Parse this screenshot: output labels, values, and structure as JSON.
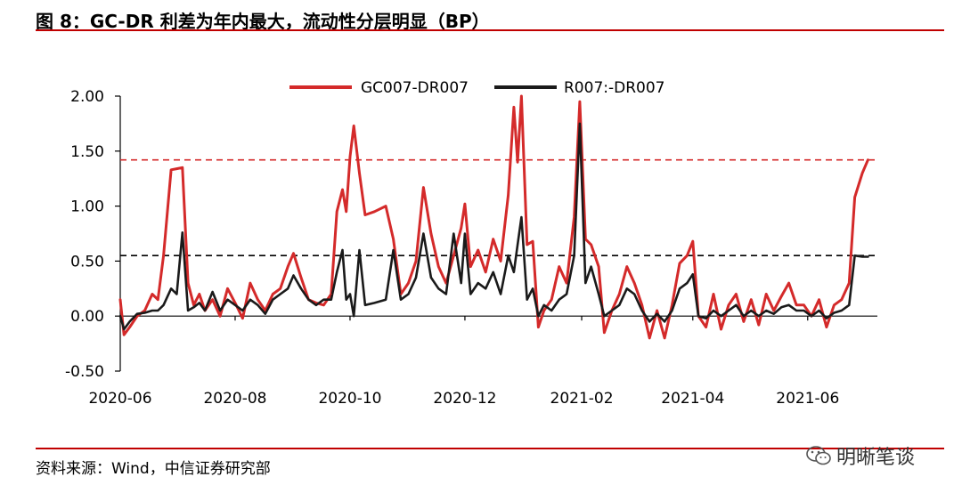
{
  "header": {
    "title": "图 8：GC-DR 利差为年内最大，流动性分层明显（BP）"
  },
  "footer": {
    "source": "资料来源：Wind，中信证券研究部",
    "watermark": "明晰笔谈"
  },
  "colors": {
    "accent": "#c00000",
    "series_gc": "#d42a2a",
    "series_r": "#1a1a1a"
  },
  "chart_data": {
    "type": "line",
    "title": "",
    "xlabel": "",
    "ylabel": "",
    "ylim": [
      -0.5,
      2.0
    ],
    "yticks": [
      "2.00",
      "1.50",
      "1.00",
      "0.50",
      "0.00",
      "-0.50"
    ],
    "xticks": [
      "2020-06",
      "2020-08",
      "2020-10",
      "2020-12",
      "2021-02",
      "2021-04",
      "2021-06"
    ],
    "xlim": [
      "2020-06-01",
      "2021-07-08"
    ],
    "legend_position": "top",
    "reference_lines": [
      {
        "value": 1.42,
        "style": "dashed",
        "color": "#d42a2a"
      },
      {
        "value": 0.55,
        "style": "dashed",
        "color": "#000000"
      }
    ],
    "series": [
      {
        "name": "GC007-DR007",
        "color": "#d42a2a",
        "points": [
          [
            "2020-06-01",
            0.15
          ],
          [
            "2020-06-03",
            -0.17
          ],
          [
            "2020-06-06",
            -0.1
          ],
          [
            "2020-06-10",
            0.0
          ],
          [
            "2020-06-14",
            0.05
          ],
          [
            "2020-06-18",
            0.2
          ],
          [
            "2020-06-21",
            0.15
          ],
          [
            "2020-06-24",
            0.55
          ],
          [
            "2020-06-28",
            1.33
          ],
          [
            "2020-07-01",
            1.34
          ],
          [
            "2020-07-04",
            1.35
          ],
          [
            "2020-07-07",
            0.3
          ],
          [
            "2020-07-10",
            0.1
          ],
          [
            "2020-07-13",
            0.2
          ],
          [
            "2020-07-16",
            0.05
          ],
          [
            "2020-07-20",
            0.15
          ],
          [
            "2020-07-24",
            0.0
          ],
          [
            "2020-07-28",
            0.25
          ],
          [
            "2020-08-01",
            0.12
          ],
          [
            "2020-08-05",
            -0.02
          ],
          [
            "2020-08-09",
            0.3
          ],
          [
            "2020-08-13",
            0.15
          ],
          [
            "2020-08-17",
            0.05
          ],
          [
            "2020-08-21",
            0.2
          ],
          [
            "2020-08-25",
            0.25
          ],
          [
            "2020-08-29",
            0.45
          ],
          [
            "2020-09-01",
            0.57
          ],
          [
            "2020-09-05",
            0.35
          ],
          [
            "2020-09-09",
            0.15
          ],
          [
            "2020-09-13",
            0.12
          ],
          [
            "2020-09-17",
            0.1
          ],
          [
            "2020-09-21",
            0.2
          ],
          [
            "2020-09-24",
            0.95
          ],
          [
            "2020-09-27",
            1.15
          ],
          [
            "2020-09-29",
            0.95
          ],
          [
            "2020-10-01",
            1.45
          ],
          [
            "2020-10-03",
            1.73
          ],
          [
            "2020-10-06",
            1.3
          ],
          [
            "2020-10-09",
            0.92
          ],
          [
            "2020-10-14",
            0.95
          ],
          [
            "2020-10-20",
            1.0
          ],
          [
            "2020-10-24",
            0.7
          ],
          [
            "2020-10-28",
            0.2
          ],
          [
            "2020-11-01",
            0.3
          ],
          [
            "2020-11-05",
            0.5
          ],
          [
            "2020-11-09",
            1.17
          ],
          [
            "2020-11-13",
            0.75
          ],
          [
            "2020-11-17",
            0.45
          ],
          [
            "2020-11-21",
            0.3
          ],
          [
            "2020-11-25",
            0.55
          ],
          [
            "2020-11-29",
            0.8
          ],
          [
            "2020-12-01",
            1.02
          ],
          [
            "2020-12-04",
            0.45
          ],
          [
            "2020-12-08",
            0.6
          ],
          [
            "2020-12-12",
            0.4
          ],
          [
            "2020-12-16",
            0.7
          ],
          [
            "2020-12-20",
            0.5
          ],
          [
            "2020-12-24",
            1.1
          ],
          [
            "2020-12-27",
            1.9
          ],
          [
            "2020-12-29",
            1.4
          ],
          [
            "2020-12-31",
            2.0
          ],
          [
            "2021-01-03",
            0.65
          ],
          [
            "2021-01-06",
            0.68
          ],
          [
            "2021-01-09",
            -0.1
          ],
          [
            "2021-01-12",
            0.05
          ],
          [
            "2021-01-16",
            0.15
          ],
          [
            "2021-01-20",
            0.45
          ],
          [
            "2021-01-24",
            0.3
          ],
          [
            "2021-01-28",
            0.9
          ],
          [
            "2021-01-31",
            1.95
          ],
          [
            "2021-02-03",
            0.7
          ],
          [
            "2021-02-06",
            0.65
          ],
          [
            "2021-02-10",
            0.45
          ],
          [
            "2021-02-13",
            -0.15
          ],
          [
            "2021-02-17",
            0.05
          ],
          [
            "2021-02-21",
            0.2
          ],
          [
            "2021-02-25",
            0.45
          ],
          [
            "2021-03-01",
            0.3
          ],
          [
            "2021-03-05",
            0.1
          ],
          [
            "2021-03-09",
            -0.2
          ],
          [
            "2021-03-13",
            0.05
          ],
          [
            "2021-03-17",
            -0.2
          ],
          [
            "2021-03-21",
            0.1
          ],
          [
            "2021-03-25",
            0.48
          ],
          [
            "2021-03-29",
            0.55
          ],
          [
            "2021-04-01",
            0.68
          ],
          [
            "2021-04-04",
            0.0
          ],
          [
            "2021-04-08",
            -0.1
          ],
          [
            "2021-04-12",
            0.2
          ],
          [
            "2021-04-16",
            -0.12
          ],
          [
            "2021-04-20",
            0.1
          ],
          [
            "2021-04-24",
            0.2
          ],
          [
            "2021-04-28",
            -0.05
          ],
          [
            "2021-05-02",
            0.15
          ],
          [
            "2021-05-06",
            -0.08
          ],
          [
            "2021-05-10",
            0.2
          ],
          [
            "2021-05-14",
            0.05
          ],
          [
            "2021-05-18",
            0.18
          ],
          [
            "2021-05-22",
            0.3
          ],
          [
            "2021-05-26",
            0.1
          ],
          [
            "2021-05-30",
            0.1
          ],
          [
            "2021-06-03",
            0.0
          ],
          [
            "2021-06-07",
            0.15
          ],
          [
            "2021-06-11",
            -0.1
          ],
          [
            "2021-06-15",
            0.1
          ],
          [
            "2021-06-19",
            0.15
          ],
          [
            "2021-06-23",
            0.3
          ],
          [
            "2021-06-26",
            1.08
          ],
          [
            "2021-06-30",
            1.3
          ],
          [
            "2021-07-03",
            1.42
          ]
        ]
      },
      {
        "name": "R007:-DR007",
        "color": "#1a1a1a",
        "points": [
          [
            "2020-06-01",
            0.0
          ],
          [
            "2020-06-03",
            -0.12
          ],
          [
            "2020-06-06",
            -0.05
          ],
          [
            "2020-06-10",
            0.02
          ],
          [
            "2020-06-14",
            0.03
          ],
          [
            "2020-06-18",
            0.05
          ],
          [
            "2020-06-21",
            0.05
          ],
          [
            "2020-06-24",
            0.1
          ],
          [
            "2020-06-28",
            0.25
          ],
          [
            "2020-07-01",
            0.2
          ],
          [
            "2020-07-04",
            0.76
          ],
          [
            "2020-07-07",
            0.05
          ],
          [
            "2020-07-10",
            0.08
          ],
          [
            "2020-07-13",
            0.12
          ],
          [
            "2020-07-16",
            0.05
          ],
          [
            "2020-07-20",
            0.22
          ],
          [
            "2020-07-24",
            0.05
          ],
          [
            "2020-07-28",
            0.15
          ],
          [
            "2020-08-01",
            0.1
          ],
          [
            "2020-08-05",
            0.05
          ],
          [
            "2020-08-09",
            0.15
          ],
          [
            "2020-08-13",
            0.1
          ],
          [
            "2020-08-17",
            0.02
          ],
          [
            "2020-08-21",
            0.15
          ],
          [
            "2020-08-25",
            0.2
          ],
          [
            "2020-08-29",
            0.25
          ],
          [
            "2020-09-01",
            0.37
          ],
          [
            "2020-09-05",
            0.25
          ],
          [
            "2020-09-09",
            0.15
          ],
          [
            "2020-09-13",
            0.1
          ],
          [
            "2020-09-17",
            0.15
          ],
          [
            "2020-09-21",
            0.15
          ],
          [
            "2020-09-24",
            0.4
          ],
          [
            "2020-09-27",
            0.6
          ],
          [
            "2020-09-29",
            0.15
          ],
          [
            "2020-10-01",
            0.2
          ],
          [
            "2020-10-03",
            0.0
          ],
          [
            "2020-10-06",
            0.6
          ],
          [
            "2020-10-09",
            0.1
          ],
          [
            "2020-10-14",
            0.12
          ],
          [
            "2020-10-20",
            0.15
          ],
          [
            "2020-10-24",
            0.6
          ],
          [
            "2020-10-28",
            0.15
          ],
          [
            "2020-11-01",
            0.2
          ],
          [
            "2020-11-05",
            0.35
          ],
          [
            "2020-11-09",
            0.75
          ],
          [
            "2020-11-13",
            0.35
          ],
          [
            "2020-11-17",
            0.25
          ],
          [
            "2020-11-21",
            0.2
          ],
          [
            "2020-11-25",
            0.75
          ],
          [
            "2020-11-29",
            0.3
          ],
          [
            "2020-12-01",
            0.75
          ],
          [
            "2020-12-04",
            0.2
          ],
          [
            "2020-12-08",
            0.3
          ],
          [
            "2020-12-12",
            0.25
          ],
          [
            "2020-12-16",
            0.4
          ],
          [
            "2020-12-20",
            0.2
          ],
          [
            "2020-12-24",
            0.55
          ],
          [
            "2020-12-27",
            0.4
          ],
          [
            "2020-12-29",
            0.65
          ],
          [
            "2020-12-31",
            0.9
          ],
          [
            "2021-01-03",
            0.15
          ],
          [
            "2021-01-06",
            0.25
          ],
          [
            "2021-01-09",
            0.0
          ],
          [
            "2021-01-12",
            0.1
          ],
          [
            "2021-01-16",
            0.05
          ],
          [
            "2021-01-20",
            0.15
          ],
          [
            "2021-01-24",
            0.2
          ],
          [
            "2021-01-28",
            0.55
          ],
          [
            "2021-01-31",
            1.75
          ],
          [
            "2021-02-03",
            0.3
          ],
          [
            "2021-02-06",
            0.45
          ],
          [
            "2021-02-10",
            0.2
          ],
          [
            "2021-02-13",
            0.0
          ],
          [
            "2021-02-17",
            0.05
          ],
          [
            "2021-02-21",
            0.1
          ],
          [
            "2021-02-25",
            0.25
          ],
          [
            "2021-03-01",
            0.2
          ],
          [
            "2021-03-05",
            0.05
          ],
          [
            "2021-03-09",
            -0.05
          ],
          [
            "2021-03-13",
            0.02
          ],
          [
            "2021-03-17",
            -0.05
          ],
          [
            "2021-03-21",
            0.05
          ],
          [
            "2021-03-25",
            0.25
          ],
          [
            "2021-03-29",
            0.3
          ],
          [
            "2021-04-01",
            0.38
          ],
          [
            "2021-04-04",
            0.0
          ],
          [
            "2021-04-08",
            -0.02
          ],
          [
            "2021-04-12",
            0.05
          ],
          [
            "2021-04-16",
            0.0
          ],
          [
            "2021-04-20",
            0.05
          ],
          [
            "2021-04-24",
            0.1
          ],
          [
            "2021-04-28",
            0.0
          ],
          [
            "2021-05-02",
            0.05
          ],
          [
            "2021-05-06",
            0.0
          ],
          [
            "2021-05-10",
            0.05
          ],
          [
            "2021-05-14",
            0.02
          ],
          [
            "2021-05-18",
            0.08
          ],
          [
            "2021-05-22",
            0.1
          ],
          [
            "2021-05-26",
            0.05
          ],
          [
            "2021-05-30",
            0.05
          ],
          [
            "2021-06-03",
            0.0
          ],
          [
            "2021-06-07",
            0.05
          ],
          [
            "2021-06-11",
            -0.02
          ],
          [
            "2021-06-15",
            0.03
          ],
          [
            "2021-06-19",
            0.05
          ],
          [
            "2021-06-23",
            0.1
          ],
          [
            "2021-06-26",
            0.55
          ],
          [
            "2021-06-30",
            0.54
          ],
          [
            "2021-07-03",
            0.54
          ]
        ]
      }
    ]
  }
}
